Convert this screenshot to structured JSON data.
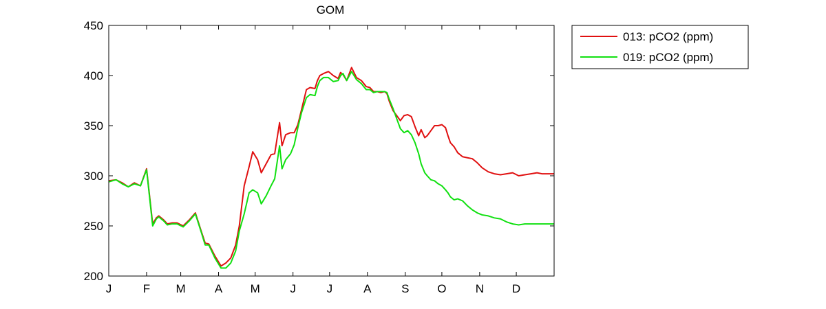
{
  "chart_data": {
    "type": "line",
    "title": "GOM",
    "xlabel": "",
    "ylabel": "",
    "xlim": [
      1,
      366
    ],
    "ylim": [
      200,
      450
    ],
    "grid": false,
    "legend_position": "outside-top-right",
    "yticks": [
      200,
      250,
      300,
      350,
      400,
      450
    ],
    "xticks": [
      {
        "label": "J",
        "x": 1
      },
      {
        "label": "F",
        "x": 32
      },
      {
        "label": "M",
        "x": 60
      },
      {
        "label": "A",
        "x": 91
      },
      {
        "label": "M",
        "x": 121
      },
      {
        "label": "J",
        "x": 152
      },
      {
        "label": "J",
        "x": 182
      },
      {
        "label": "A",
        "x": 213
      },
      {
        "label": "S",
        "x": 244
      },
      {
        "label": "O",
        "x": 274
      },
      {
        "label": "N",
        "x": 305
      },
      {
        "label": "D",
        "x": 335
      }
    ],
    "series": [
      {
        "name": "013: pCO2 (ppm)",
        "color": "#e01010",
        "x": [
          1,
          7,
          12,
          17,
          22,
          27,
          32,
          37,
          40,
          42,
          46,
          49,
          53,
          57,
          62,
          67,
          72,
          77,
          80,
          83,
          88,
          93,
          97,
          101,
          105,
          108,
          112,
          116,
          119,
          123,
          126,
          130,
          134,
          137,
          141,
          143,
          146,
          150,
          153,
          156,
          159,
          163,
          166,
          170,
          172,
          174,
          177,
          181,
          185,
          189,
          191,
          193,
          196,
          200,
          204,
          208,
          212,
          215,
          218,
          221,
          224,
          227,
          229,
          231,
          234,
          237,
          240,
          243,
          246,
          249,
          252,
          255,
          257,
          260,
          262,
          265,
          268,
          271,
          274,
          277,
          279,
          281,
          284,
          287,
          291,
          295,
          299,
          303,
          307,
          312,
          317,
          322,
          327,
          332,
          337,
          342,
          347,
          352,
          356,
          360,
          364,
          366
        ],
        "values": [
          295,
          296,
          293,
          289,
          293,
          290,
          307,
          252,
          258,
          260,
          256,
          252,
          253,
          253,
          250,
          256,
          263,
          244,
          233,
          232,
          220,
          210,
          213,
          218,
          231,
          250,
          290,
          309,
          324,
          316,
          303,
          312,
          321,
          322,
          353,
          330,
          341,
          343,
          343,
          351,
          366,
          386,
          388,
          387,
          395,
          400,
          402,
          404,
          400,
          397,
          403,
          401,
          395,
          408,
          398,
          395,
          389,
          388,
          384,
          384,
          383,
          384,
          382,
          374,
          365,
          360,
          355,
          360,
          361,
          359,
          349,
          340,
          346,
          338,
          340,
          345,
          350,
          350,
          351,
          348,
          340,
          333,
          329,
          323,
          319,
          318,
          317,
          313,
          308,
          304,
          302,
          301,
          302,
          303,
          300,
          301,
          302,
          303,
          302,
          302,
          302,
          302
        ]
      },
      {
        "name": "019: pCO2 (ppm)",
        "color": "#10e010",
        "x": [
          1,
          7,
          12,
          17,
          22,
          27,
          32,
          37,
          40,
          42,
          46,
          49,
          53,
          57,
          62,
          67,
          72,
          77,
          80,
          83,
          88,
          93,
          97,
          101,
          105,
          108,
          112,
          116,
          119,
          123,
          126,
          130,
          134,
          137,
          141,
          143,
          146,
          150,
          153,
          156,
          159,
          163,
          166,
          170,
          172,
          174,
          177,
          181,
          185,
          189,
          191,
          193,
          196,
          200,
          204,
          208,
          212,
          215,
          218,
          221,
          224,
          227,
          229,
          231,
          234,
          237,
          240,
          243,
          246,
          249,
          252,
          255,
          257,
          260,
          262,
          265,
          268,
          271,
          274,
          277,
          279,
          281,
          284,
          287,
          291,
          295,
          299,
          303,
          307,
          312,
          317,
          322,
          327,
          332,
          337,
          342,
          347,
          352,
          356,
          360,
          364,
          366
        ],
        "values": [
          294,
          296,
          292,
          289,
          292,
          290,
          306,
          250,
          257,
          259,
          255,
          251,
          252,
          252,
          249,
          255,
          262,
          243,
          231,
          231,
          218,
          208,
          208,
          213,
          225,
          245,
          262,
          283,
          286,
          283,
          272,
          280,
          290,
          297,
          330,
          307,
          316,
          322,
          331,
          348,
          363,
          378,
          381,
          380,
          389,
          395,
          398,
          398,
          394,
          395,
          400,
          402,
          395,
          404,
          396,
          392,
          386,
          386,
          383,
          384,
          384,
          384,
          383,
          376,
          367,
          357,
          347,
          343,
          345,
          341,
          333,
          322,
          312,
          303,
          300,
          296,
          295,
          292,
          290,
          286,
          283,
          279,
          276,
          277,
          275,
          270,
          266,
          263,
          261,
          260,
          258,
          257,
          254,
          252,
          251,
          252,
          252,
          252,
          252,
          252,
          252,
          252
        ]
      }
    ]
  }
}
